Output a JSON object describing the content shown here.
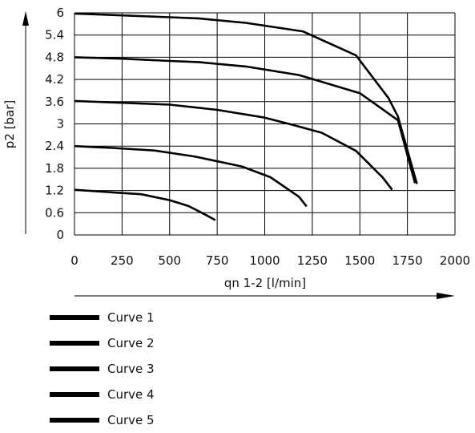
{
  "chart_data": {
    "type": "line",
    "xlabel": "qn 1-2 [l/min]",
    "ylabel": "p2 [bar]",
    "xlim": [
      0,
      2000
    ],
    "ylim": [
      0,
      6
    ],
    "x_ticks": [
      "0",
      "250",
      "500",
      "750",
      "1000",
      "1250",
      "1500",
      "1750",
      "2000"
    ],
    "y_ticks": [
      "0",
      "0.6",
      "1.2",
      "1.8",
      "2.4",
      "3",
      "3.6",
      "4.2",
      "4.8",
      "5.4",
      "6"
    ],
    "grid": true,
    "legend_position": "bottom-left",
    "line_color": "#000000",
    "series": [
      {
        "name": "Curve 1",
        "points": [
          [
            0,
            5.98
          ],
          [
            250,
            5.93
          ],
          [
            500,
            5.88
          ],
          [
            650,
            5.85
          ],
          [
            900,
            5.73
          ],
          [
            1200,
            5.5
          ],
          [
            1480,
            4.85
          ],
          [
            1650,
            3.7
          ],
          [
            1700,
            3.2
          ],
          [
            1800,
            1.38
          ]
        ]
      },
      {
        "name": "Curve 2",
        "points": [
          [
            0,
            4.8
          ],
          [
            250,
            4.76
          ],
          [
            500,
            4.7
          ],
          [
            650,
            4.67
          ],
          [
            900,
            4.55
          ],
          [
            1180,
            4.32
          ],
          [
            1500,
            3.83
          ],
          [
            1700,
            3.1
          ],
          [
            1790,
            1.4
          ]
        ]
      },
      {
        "name": "Curve 3",
        "points": [
          [
            0,
            3.62
          ],
          [
            250,
            3.57
          ],
          [
            500,
            3.52
          ],
          [
            750,
            3.38
          ],
          [
            1000,
            3.17
          ],
          [
            1150,
            2.97
          ],
          [
            1300,
            2.76
          ],
          [
            1480,
            2.27
          ],
          [
            1620,
            1.55
          ],
          [
            1670,
            1.22
          ]
        ]
      },
      {
        "name": "Curve 4",
        "points": [
          [
            0,
            2.4
          ],
          [
            200,
            2.35
          ],
          [
            420,
            2.28
          ],
          [
            630,
            2.12
          ],
          [
            880,
            1.85
          ],
          [
            1030,
            1.56
          ],
          [
            1180,
            1.03
          ],
          [
            1220,
            0.77
          ]
        ]
      },
      {
        "name": "Curve 5",
        "points": [
          [
            0,
            1.22
          ],
          [
            200,
            1.15
          ],
          [
            350,
            1.1
          ],
          [
            500,
            0.94
          ],
          [
            600,
            0.78
          ],
          [
            680,
            0.57
          ],
          [
            740,
            0.4
          ]
        ]
      }
    ]
  }
}
